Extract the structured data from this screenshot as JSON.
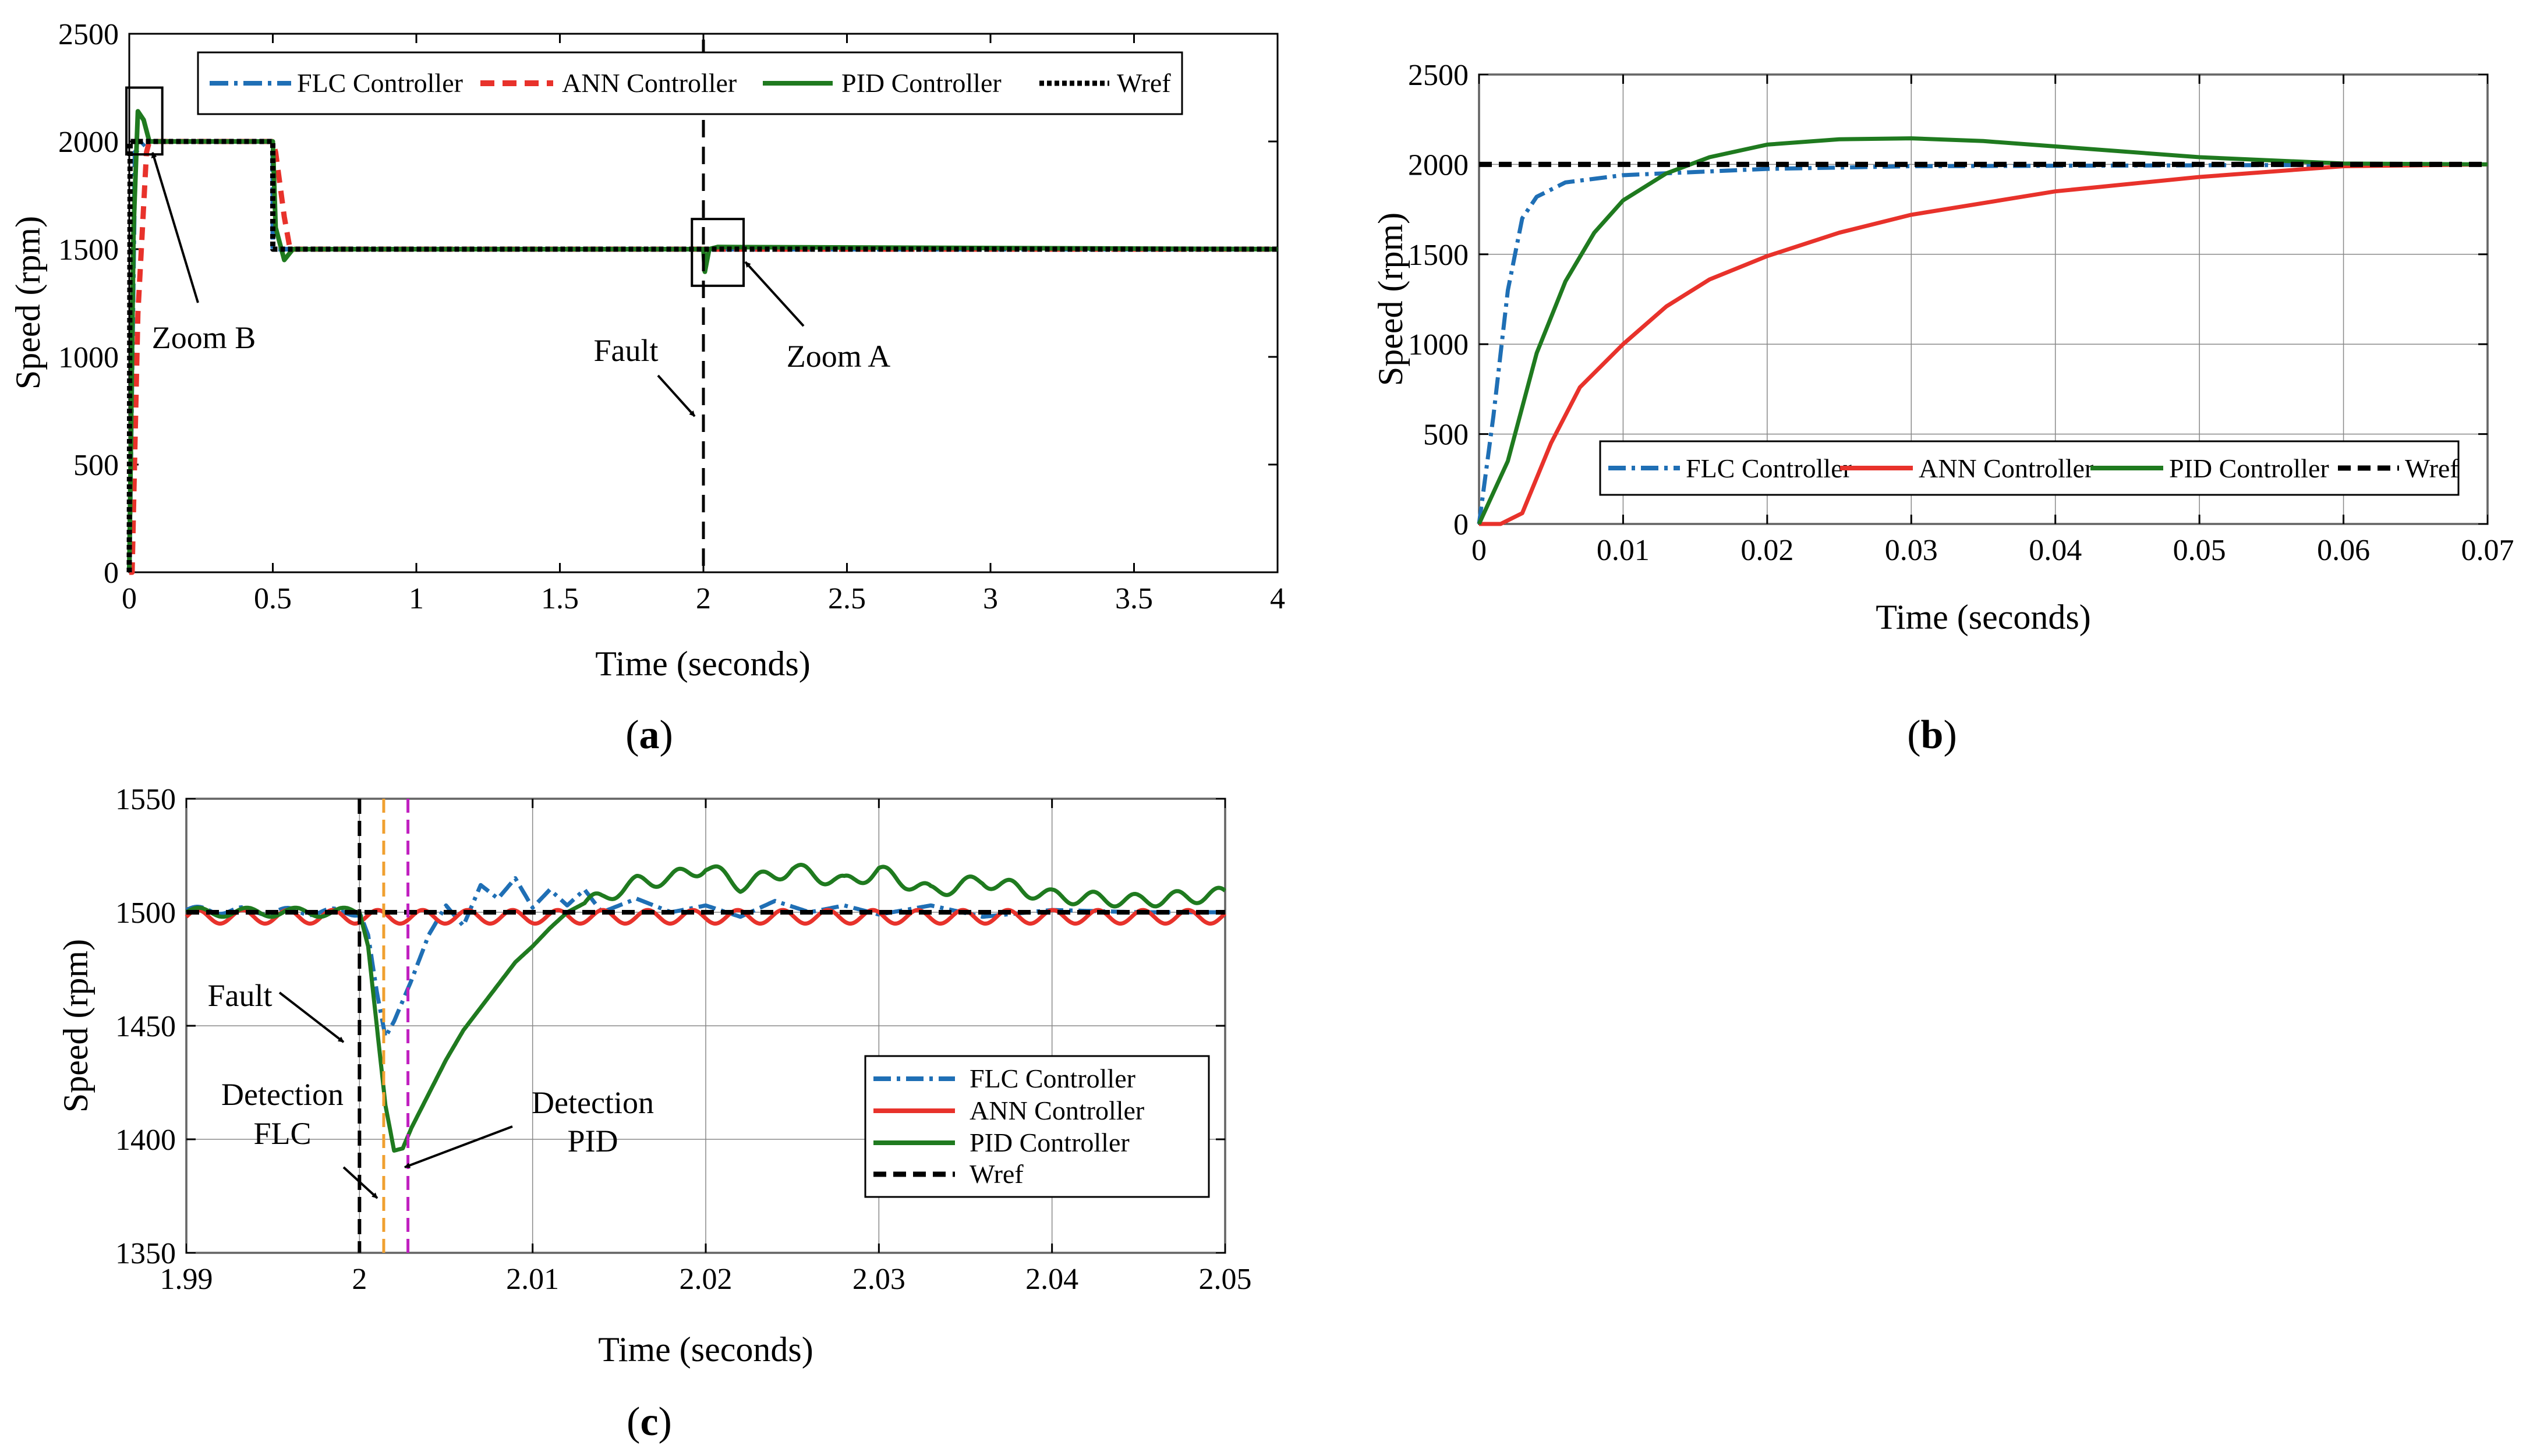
{
  "colors": {
    "flc": "#1f6fb5",
    "ann": "#e8322b",
    "pid": "#1f7a1f",
    "wref": "#000000",
    "det_flc": "#f0a030",
    "det_pid": "#c020c0"
  },
  "legend_labels": {
    "flc": "FLC Controller",
    "ann": "ANN  Controller",
    "pid": "PID  Controller",
    "wref": "Wref"
  },
  "chart_data": [
    {
      "id": "a",
      "type": "line",
      "caption": {
        "open": "(",
        "letter": "a",
        "close": ")"
      },
      "xlabel": "Time (seconds)",
      "ylabel": "Speed (rpm)",
      "xlim": [
        0,
        4
      ],
      "ylim": [
        0,
        2500
      ],
      "xticks": [
        0,
        0.5,
        1,
        1.5,
        2,
        2.5,
        3,
        3.5,
        4
      ],
      "xtick_labels": [
        "0",
        "0.5",
        "1",
        "1.5",
        "2",
        "2.5",
        "3",
        "3.5",
        "4"
      ],
      "yticks": [
        0,
        500,
        1000,
        1500,
        2000,
        2500
      ],
      "ytick_labels": [
        "0",
        "500",
        "1000",
        "1500",
        "2000",
        "2500"
      ],
      "legend_position": "top",
      "annotations": {
        "zoom_b": "Zoom B",
        "zoom_a": "Zoom A",
        "fault": "Fault"
      },
      "series": [
        {
          "name": "FLC Controller",
          "key": "flc",
          "x": [
            0,
            0.02,
            0.06,
            0.5,
            0.5,
            0.53,
            4
          ],
          "y": [
            0,
            1950,
            2000,
            2000,
            1500,
            1500,
            1500
          ]
        },
        {
          "name": "ANN  Controller",
          "key": "ann",
          "x": [
            0,
            0.01,
            0.03,
            0.06,
            0.07,
            0.5,
            0.51,
            0.54,
            0.56,
            4
          ],
          "y": [
            0,
            0,
            1200,
            1950,
            2000,
            2000,
            1950,
            1650,
            1500,
            1500
          ]
        },
        {
          "name": "PID  Controller",
          "key": "pid",
          "x": [
            0,
            0.015,
            0.03,
            0.05,
            0.07,
            0.1,
            0.5,
            0.51,
            0.54,
            0.57,
            0.6,
            2,
            2.005,
            2.02,
            2.05,
            4
          ],
          "y": [
            0,
            1600,
            2140,
            2100,
            2000,
            2000,
            2000,
            1600,
            1450,
            1500,
            1500,
            1500,
            1395,
            1500,
            1510,
            1500
          ]
        },
        {
          "name": "Wref",
          "key": "wref",
          "x": [
            0,
            0.003,
            0.5,
            0.5,
            4
          ],
          "y": [
            0,
            2000,
            2000,
            1500,
            1500
          ]
        }
      ]
    },
    {
      "id": "b",
      "type": "line",
      "caption": {
        "open": "(",
        "letter": "b",
        "close": ")"
      },
      "xlabel": "Time (seconds)",
      "ylabel": "Speed (rpm)",
      "xlim": [
        0,
        0.07
      ],
      "ylim": [
        0,
        2500
      ],
      "xticks": [
        0,
        0.01,
        0.02,
        0.03,
        0.04,
        0.05,
        0.06,
        0.07
      ],
      "xtick_labels": [
        "0",
        "0.01",
        "0.02",
        "0.03",
        "0.04",
        "0.05",
        "0.06",
        "0.07"
      ],
      "yticks": [
        0,
        500,
        1000,
        1500,
        2000,
        2500
      ],
      "ytick_labels": [
        "0",
        "500",
        "1000",
        "1500",
        "2000",
        "2500"
      ],
      "grid": true,
      "legend_position": "bottom",
      "series": [
        {
          "name": "FLC Controller",
          "key": "flc",
          "x": [
            0,
            0.001,
            0.002,
            0.003,
            0.004,
            0.006,
            0.01,
            0.02,
            0.03,
            0.07
          ],
          "y": [
            0,
            600,
            1300,
            1700,
            1820,
            1900,
            1940,
            1975,
            1990,
            2000
          ]
        },
        {
          "name": "ANN  Controller",
          "key": "ann",
          "x": [
            0,
            0.0015,
            0.003,
            0.005,
            0.007,
            0.01,
            0.013,
            0.016,
            0.02,
            0.025,
            0.03,
            0.04,
            0.05,
            0.06,
            0.07
          ],
          "y": [
            0,
            0,
            60,
            450,
            760,
            1000,
            1210,
            1360,
            1490,
            1620,
            1720,
            1850,
            1930,
            1990,
            2000
          ]
        },
        {
          "name": "PID  Controller",
          "key": "pid",
          "x": [
            0,
            0.002,
            0.004,
            0.006,
            0.008,
            0.01,
            0.013,
            0.016,
            0.02,
            0.025,
            0.03,
            0.035,
            0.04,
            0.05,
            0.06,
            0.07
          ],
          "y": [
            0,
            350,
            950,
            1350,
            1620,
            1800,
            1950,
            2040,
            2110,
            2140,
            2145,
            2130,
            2100,
            2040,
            2005,
            2000
          ]
        },
        {
          "name": "Wref",
          "key": "wref",
          "x": [
            0,
            0.07
          ],
          "y": [
            2000,
            2000
          ]
        }
      ]
    },
    {
      "id": "c",
      "type": "line",
      "caption": {
        "open": "(",
        "letter": "c",
        "close": ")"
      },
      "xlabel": "Time (seconds)",
      "ylabel": "Speed (rpm)",
      "xlim": [
        1.99,
        2.05
      ],
      "ylim": [
        1350,
        1550
      ],
      "xticks": [
        1.99,
        2.0,
        2.01,
        2.02,
        2.03,
        2.04,
        2.05
      ],
      "xtick_labels": [
        "1.99",
        "2",
        "2.01",
        "2.02",
        "2.03",
        "2.04",
        "2.05"
      ],
      "yticks": [
        1350,
        1400,
        1450,
        1500,
        1550
      ],
      "ytick_labels": [
        "1350",
        "1400",
        "1450",
        "1500",
        "1550"
      ],
      "grid": true,
      "legend_position": "bottom-right",
      "annotations": {
        "fault": "Fault",
        "det_flc_1": "Detection",
        "det_flc_2": "FLC",
        "det_pid_1": "Detection",
        "det_pid_2": "PID"
      },
      "fault_time": 2.0,
      "detection_flc_time": 2.0014,
      "detection_pid_time": 2.0028,
      "series": [
        {
          "name": "FLC Controller",
          "key": "flc",
          "x": [
            1.99,
            2.0,
            2.0005,
            2.001,
            2.0015,
            2.002,
            2.003,
            2.004,
            2.005,
            2.006,
            2.007,
            2.008,
            2.009,
            2.01,
            2.011,
            2.012,
            2.013,
            2.014,
            2.016,
            2.018,
            2.02,
            2.022,
            2.024,
            2.026,
            2.028,
            2.03,
            2.033,
            2.036,
            2.04,
            2.045,
            2.05
          ],
          "y": [
            1501,
            1500,
            1490,
            1465,
            1445,
            1452,
            1470,
            1490,
            1503,
            1494,
            1512,
            1506,
            1515,
            1502,
            1510,
            1503,
            1510,
            1500,
            1506,
            1500,
            1503,
            1498,
            1505,
            1500,
            1503,
            1499,
            1503,
            1498,
            1501,
            1500,
            1500
          ]
        },
        {
          "name": "ANN  Controller",
          "key": "ann",
          "x": [
            1.99,
            2.05
          ],
          "y": [
            1498,
            1498
          ]
        },
        {
          "name": "PID  Controller",
          "key": "pid",
          "x": [
            1.99,
            2.0,
            2.0005,
            2.001,
            2.0015,
            2.002,
            2.0025,
            2.003,
            2.004,
            2.005,
            2.006,
            2.007,
            2.008,
            2.009,
            2.01,
            2.011,
            2.012,
            2.013,
            2.014,
            2.015,
            2.016,
            2.018,
            2.02,
            2.022,
            2.025,
            2.028,
            2.03,
            2.033,
            2.036,
            2.04,
            2.045,
            2.05
          ],
          "y": [
            1500,
            1500,
            1485,
            1450,
            1415,
            1395,
            1396,
            1405,
            1420,
            1435,
            1448,
            1458,
            1468,
            1478,
            1485,
            1493,
            1500,
            1504,
            1506,
            1510,
            1513,
            1515,
            1520,
            1512,
            1519,
            1513,
            1518,
            1509,
            1514,
            1507,
            1505,
            1508
          ]
        },
        {
          "name": "Wref",
          "key": "wref",
          "x": [
            1.99,
            2.05
          ],
          "y": [
            1500,
            1500
          ]
        }
      ]
    }
  ]
}
